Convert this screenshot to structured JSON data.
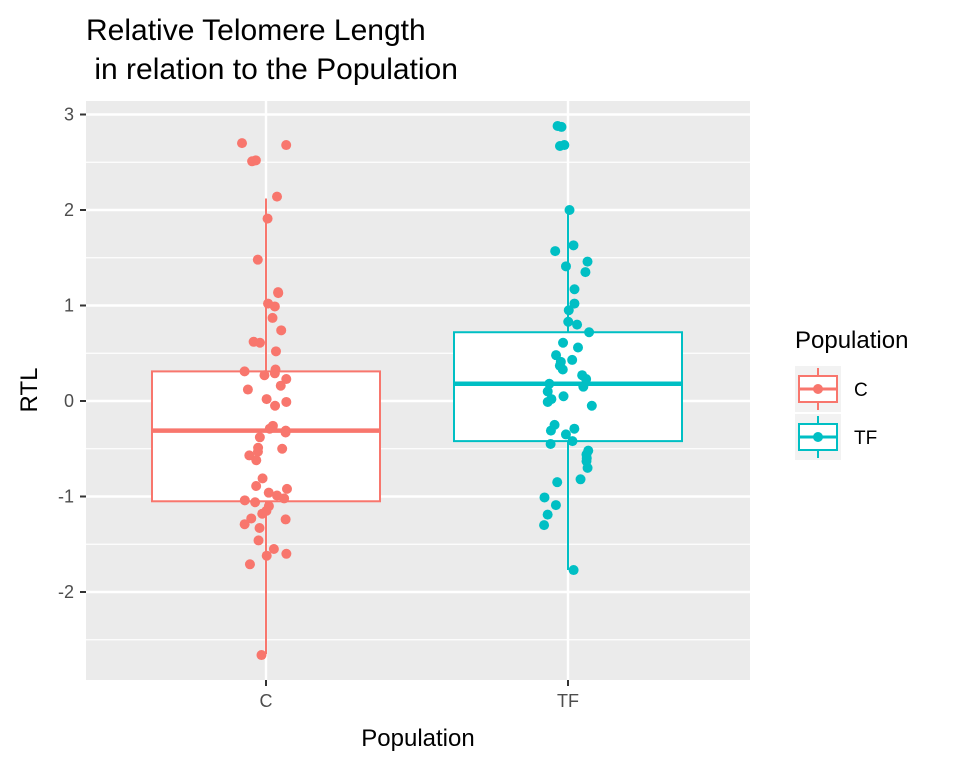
{
  "chart_data": {
    "type": "box",
    "title_line1": "Relative Telomere Length",
    "title_line2": " in relation to the Population",
    "xlabel": "Population",
    "ylabel": "RTL",
    "ylim": [
      -3.0,
      3.1
    ],
    "y_ticks": [
      -2,
      -1,
      0,
      1,
      2,
      3
    ],
    "y_tick_labels": [
      "-2",
      "-1",
      "0",
      "1",
      "2",
      "3"
    ],
    "categories": [
      "C",
      "TF"
    ],
    "grid": true,
    "legend": {
      "title": "Population",
      "placement": "right",
      "entries": [
        "C",
        "TF"
      ]
    },
    "colors": {
      "C": "#F8766D",
      "TF": "#00BFC4",
      "panel": "#EBEBEB",
      "grid": "#FFFFFF"
    },
    "series": [
      {
        "name": "C",
        "box": {
          "min": -2.65,
          "q1": -1.05,
          "median": -0.31,
          "q3": 0.31,
          "max": 2.12
        },
        "points": [
          2.7,
          2.68,
          2.52,
          2.51,
          2.14,
          1.91,
          1.48,
          1.14,
          1.13,
          1.02,
          0.99,
          0.87,
          0.74,
          0.62,
          0.61,
          0.52,
          0.33,
          0.31,
          0.29,
          0.27,
          0.23,
          0.16,
          0.12,
          0.02,
          -0.01,
          -0.05,
          -0.26,
          -0.29,
          -0.31,
          -0.33,
          -0.38,
          -0.49,
          -0.5,
          -0.53,
          -0.57,
          -0.62,
          -0.81,
          -0.89,
          -0.92,
          -0.96,
          -0.99,
          -1.02,
          -1.04,
          -1.06,
          -1.1,
          -1.15,
          -1.18,
          -1.23,
          -1.24,
          -1.29,
          -1.33,
          -1.46,
          -1.55,
          -1.6,
          -1.62,
          -1.71,
          -2.66
        ]
      },
      {
        "name": "TF",
        "box": {
          "min": -1.77,
          "q1": -0.42,
          "median": 0.18,
          "q3": 0.72,
          "max": 2.0
        },
        "points": [
          2.88,
          2.87,
          2.68,
          2.67,
          2.0,
          1.63,
          1.57,
          1.46,
          1.41,
          1.35,
          1.17,
          1.02,
          0.95,
          0.83,
          0.8,
          0.72,
          0.61,
          0.56,
          0.48,
          0.43,
          0.41,
          0.37,
          0.33,
          0.27,
          0.23,
          0.18,
          0.15,
          0.1,
          0.05,
          0.02,
          -0.01,
          -0.05,
          -0.25,
          -0.29,
          -0.31,
          -0.35,
          -0.42,
          -0.45,
          -0.52,
          -0.56,
          -0.6,
          -0.63,
          -0.7,
          -0.82,
          -0.85,
          -1.01,
          -1.09,
          -1.19,
          -1.3,
          -1.77
        ]
      }
    ]
  }
}
